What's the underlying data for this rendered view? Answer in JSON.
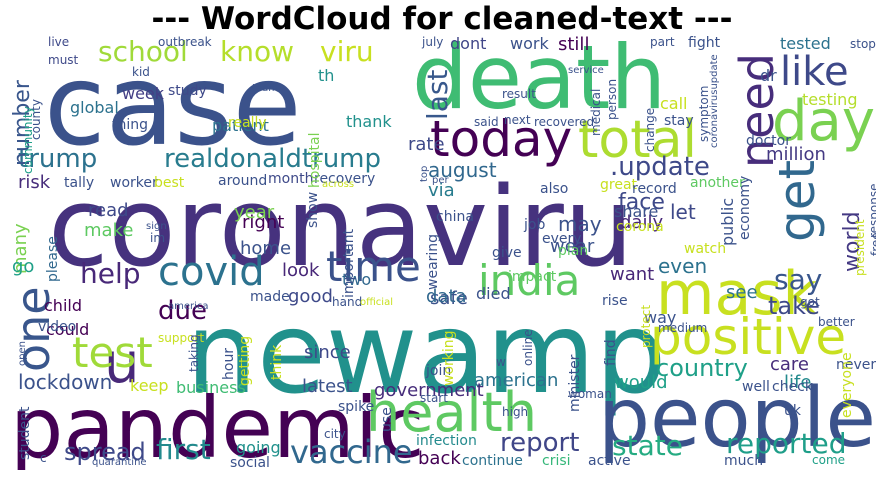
{
  "title": "--- WordCloud for cleaned-text ---",
  "words": [
    {
      "id": "case",
      "text": "case",
      "color": "#3b528b"
    },
    {
      "id": "death",
      "text": "death",
      "color": "#3fbc73"
    },
    {
      "id": "coronaviru",
      "text": "coronaviru",
      "color": "#46327e"
    },
    {
      "id": "newamp",
      "text": "newamp",
      "color": "#21918c"
    },
    {
      "id": "pandemic",
      "text": "pandemic",
      "color": "#440154"
    },
    {
      "id": "people",
      "text": "people",
      "color": "#3b528b"
    },
    {
      "id": "health",
      "text": "health",
      "color": "#5ec962"
    },
    {
      "id": "mask",
      "text": "mask",
      "color": "#c8e020"
    },
    {
      "id": "positive",
      "text": "positive",
      "color": "#c8e020"
    },
    {
      "id": "day",
      "text": "day",
      "color": "#7ad151"
    },
    {
      "id": "today",
      "text": "today",
      "color": "#440154"
    },
    {
      "id": "total",
      "text": "total",
      "color": "#addc30"
    },
    {
      "id": "get",
      "text": "get",
      "color": "#31688e"
    },
    {
      "id": "u",
      "text": "u",
      "color": "#482878"
    },
    {
      "id": "one",
      "text": "one",
      "color": "#39568c"
    },
    {
      "id": "test",
      "text": "test",
      "color": "#a0da39"
    },
    {
      "id": "covid",
      "text": "covid",
      "color": "#2c728e"
    },
    {
      "id": "time",
      "text": "time",
      "color": "#3b528b"
    },
    {
      "id": "india",
      "text": "india",
      "color": "#5ec962"
    },
    {
      "id": "vaccine",
      "text": "vaccine",
      "color": "#31688e"
    },
    {
      "id": "need",
      "text": "need",
      "color": "#472d7b"
    },
    {
      "id": "like",
      "text": "like",
      "color": "#3e4989"
    },
    {
      "id": "realdonaldtrump",
      "text": "realdonaldtrump",
      "color": "#287c8e"
    },
    {
      "id": "update",
      "text": ".update",
      "color": "#3e4989"
    },
    {
      "id": "trump",
      "text": "trump",
      "color": "#2c728e"
    },
    {
      "id": "school",
      "text": "school",
      "color": "#a0da39"
    },
    {
      "id": "know",
      "text": "know",
      "color": "#b5de2b"
    },
    {
      "id": "viru",
      "text": "viru",
      "color": "#c8e020"
    },
    {
      "id": "number",
      "text": "number",
      "color": "#39568c"
    },
    {
      "id": "last",
      "text": "last",
      "color": "#38588c"
    },
    {
      "id": "help",
      "text": "help",
      "color": "#482878"
    },
    {
      "id": "say",
      "text": "say",
      "color": "#39568c"
    },
    {
      "id": "world",
      "text": "world",
      "color": "#443983"
    },
    {
      "id": "country",
      "text": "country",
      "color": "#1fa088"
    },
    {
      "id": "state",
      "text": "state",
      "color": "#25ab82"
    },
    {
      "id": "report",
      "text": "report",
      "color": "#404688"
    },
    {
      "id": "reported",
      "text": "reported",
      "color": "#1f9e89"
    },
    {
      "id": "first",
      "text": "first",
      "color": "#238a8d"
    },
    {
      "id": "spread",
      "text": "spread",
      "color": "#3e4989"
    },
    {
      "id": "lockdown",
      "text": "lockdown",
      "color": "#3b528b"
    },
    {
      "id": "due",
      "text": "due",
      "color": "#440154"
    },
    {
      "id": "many",
      "text": "many",
      "color": "#7ad151"
    },
    {
      "id": "august",
      "text": "august",
      "color": "#31688e"
    },
    {
      "id": "even",
      "text": "even",
      "color": "#2c728e"
    },
    {
      "id": "rate",
      "text": "rate",
      "color": "#3e4989"
    },
    {
      "id": "via",
      "text": "via",
      "color": "#287c8e"
    },
    {
      "id": "million",
      "text": "million",
      "color": "#443983"
    },
    {
      "id": "tested",
      "text": "tested",
      "color": "#2c728e"
    },
    {
      "id": "testing",
      "text": "testing",
      "color": "#b5de2b"
    },
    {
      "id": "global",
      "text": "global",
      "color": "#2c728e"
    },
    {
      "id": "week",
      "text": "week",
      "color": "#433e85"
    },
    {
      "id": "risk",
      "text": "risk",
      "color": "#472d7b"
    },
    {
      "id": "go",
      "text": "go",
      "color": "#1fa088"
    },
    {
      "id": "face",
      "text": "face",
      "color": "#3e4989"
    },
    {
      "id": "may",
      "text": "may",
      "color": "#3b528b"
    },
    {
      "id": "wear",
      "text": "wear",
      "color": "#3b528b"
    },
    {
      "id": "daily",
      "text": "daily",
      "color": "#482878"
    },
    {
      "id": "let",
      "text": "let",
      "color": "#3e4989"
    },
    {
      "id": "see",
      "text": "see",
      "color": "#2c728e"
    },
    {
      "id": "want",
      "text": "want",
      "color": "#482878"
    },
    {
      "id": "take",
      "text": "take",
      "color": "#3e4989"
    },
    {
      "id": "care",
      "text": "care",
      "color": "#472d7b"
    },
    {
      "id": "life",
      "text": "life",
      "color": "#238a8d"
    },
    {
      "id": "would",
      "text": "would",
      "color": "#1fa088"
    },
    {
      "id": "american",
      "text": "american",
      "color": "#2c728e"
    },
    {
      "id": "latest",
      "text": "latest",
      "color": "#3b528b"
    },
    {
      "id": "government",
      "text": "government",
      "color": "#472d7b"
    },
    {
      "id": "business",
      "text": "business",
      "color": "#3fbc73"
    },
    {
      "id": "keep",
      "text": "keep",
      "color": "#c8e020"
    },
    {
      "id": "since",
      "text": "since",
      "color": "#3e4989"
    },
    {
      "id": "good",
      "text": "good",
      "color": "#3e4989"
    },
    {
      "id": "look",
      "text": "look",
      "color": "#482878"
    },
    {
      "id": "home",
      "text": "home",
      "color": "#3b528b"
    },
    {
      "id": "right",
      "text": "right",
      "color": "#440154"
    },
    {
      "id": "make",
      "text": "make",
      "color": "#5ec962"
    },
    {
      "id": "read",
      "text": "read",
      "color": "#3e4989"
    },
    {
      "id": "year",
      "text": "year",
      "color": "#7ad151"
    },
    {
      "id": "could",
      "text": "could",
      "color": "#440154"
    },
    {
      "id": "safe",
      "text": "safe",
      "color": "#3b528b"
    },
    {
      "id": "data",
      "text": "data",
      "color": "#31688e"
    },
    {
      "id": "died",
      "text": "died",
      "color": "#3b528b"
    },
    {
      "id": "two",
      "text": "two",
      "color": "#31688e"
    },
    {
      "id": "still",
      "text": "still",
      "color": "#440154"
    },
    {
      "id": "work",
      "text": "work",
      "color": "#3b528b"
    },
    {
      "id": "dont",
      "text": "dont",
      "color": "#404688"
    },
    {
      "id": "thank",
      "text": "thank",
      "color": "#21918c"
    },
    {
      "id": "patient",
      "text": "patient",
      "color": "#2c728e"
    },
    {
      "id": "infection",
      "text": "infection",
      "color": "#238a8d"
    },
    {
      "id": "back",
      "text": "back",
      "color": "#440154"
    },
    {
      "id": "continue",
      "text": "continue",
      "color": "#2c728e"
    },
    {
      "id": "crisi",
      "text": "crisi",
      "color": "#35b779"
    },
    {
      "id": "active",
      "text": "active",
      "color": "#3b528b"
    },
    {
      "id": "much",
      "text": "much",
      "color": "#3b528b"
    },
    {
      "id": "come",
      "text": "come",
      "color": "#1fa088"
    },
    {
      "id": "going",
      "text": "going",
      "color": "#21918c"
    },
    {
      "id": "social",
      "text": "social",
      "color": "#3b528b"
    },
    {
      "id": "student",
      "text": "student",
      "color": "#3b528b"
    },
    {
      "id": "video",
      "text": "video",
      "color": "#3b528b"
    },
    {
      "id": "child",
      "text": "child",
      "color": "#440154"
    },
    {
      "id": "please",
      "text": "please",
      "color": "#31688e"
    },
    {
      "id": "around",
      "text": "around",
      "color": "#3b528b"
    },
    {
      "id": "month",
      "text": "month",
      "color": "#3e4989"
    },
    {
      "id": "recovery",
      "text": "recovery",
      "color": "#3b528b"
    },
    {
      "id": "worker",
      "text": "worker",
      "color": "#3b528b"
    },
    {
      "id": "tally",
      "text": "tally",
      "color": "#3b528b"
    },
    {
      "id": "best",
      "text": "best",
      "color": "#c8e020"
    },
    {
      "id": "hospital",
      "text": "hospital",
      "color": "#7ad151"
    },
    {
      "id": "really",
      "text": "really",
      "color": "#c8e020"
    },
    {
      "id": "study",
      "text": "study",
      "color": "#3e4989"
    },
    {
      "id": "kid",
      "text": "kid",
      "color": "#3b528b"
    },
    {
      "id": "must",
      "text": "must",
      "color": "#3e4989"
    },
    {
      "id": "live",
      "text": "live",
      "color": "#3e4989"
    },
    {
      "id": "thing",
      "text": "thing",
      "color": "#3b528b"
    },
    {
      "id": "county",
      "text": "county",
      "color": "#3b528b"
    },
    {
      "id": "community",
      "text": "community",
      "color": "#1fa088"
    },
    {
      "id": "team",
      "text": "team",
      "color": "#3b528b"
    },
    {
      "id": "outbreak",
      "text": "outbreak",
      "color": "#3b528b"
    },
    {
      "id": "th",
      "text": "th",
      "color": "#21918c"
    },
    {
      "id": "said",
      "text": "said",
      "color": "#3b528b"
    },
    {
      "id": "next",
      "text": "next",
      "color": "#3b528b"
    },
    {
      "id": "recovered",
      "text": "recovered",
      "color": "#3b528b"
    },
    {
      "id": "result",
      "text": "result",
      "color": "#3b528b"
    },
    {
      "id": "person",
      "text": "person",
      "color": "#3b528b"
    },
    {
      "id": "medical",
      "text": "medical",
      "color": "#3b528b"
    },
    {
      "id": "july",
      "text": "july",
      "color": "#3b528b"
    },
    {
      "id": "part",
      "text": "part",
      "color": "#3b528b"
    },
    {
      "id": "fight",
      "text": "fight",
      "color": "#3b528b"
    },
    {
      "id": "call",
      "text": "call",
      "color": "#c8e020"
    },
    {
      "id": "stay",
      "text": "stay",
      "color": "#3b528b"
    },
    {
      "id": "change",
      "text": "change",
      "color": "#3b528b"
    },
    {
      "id": "symptom",
      "text": "symptom",
      "color": "#3b528b"
    },
    {
      "id": "coronavirusupdate",
      "text": "coronavirusupdate",
      "color": "#3b528b"
    },
    {
      "id": "dr",
      "text": "dr",
      "color": "#3b528b"
    },
    {
      "id": "doctor",
      "text": "doctor",
      "color": "#3b528b"
    },
    {
      "id": "stop",
      "text": "stop",
      "color": "#3b528b"
    },
    {
      "id": "service",
      "text": "service",
      "color": "#3b528b"
    },
    {
      "id": "great",
      "text": "great",
      "color": "#c8e020"
    },
    {
      "id": "also",
      "text": "also",
      "color": "#3b528b"
    },
    {
      "id": "record",
      "text": "record",
      "color": "#3b528b"
    },
    {
      "id": "another",
      "text": "another",
      "color": "#5ec962"
    },
    {
      "id": "public",
      "text": "public",
      "color": "#3b528b"
    },
    {
      "id": "economy",
      "text": "economy",
      "color": "#3b528b"
    },
    {
      "id": "response",
      "text": "response",
      "color": "#3b528b"
    },
    {
      "id": "president",
      "text": "president",
      "color": "#c8e020"
    },
    {
      "id": "free",
      "text": "free",
      "color": "#3b528b"
    },
    {
      "id": "china",
      "text": "china",
      "color": "#3b528b"
    },
    {
      "id": "share",
      "text": "share",
      "color": "#3b528b"
    },
    {
      "id": "corona",
      "text": "corona",
      "color": "#c8e020"
    },
    {
      "id": "every",
      "text": "every",
      "color": "#3b528b"
    },
    {
      "id": "job",
      "text": "job",
      "color": "#3b528b"
    },
    {
      "id": "plan",
      "text": "plan",
      "color": "#5ec962"
    },
    {
      "id": "give",
      "text": "give",
      "color": "#3b528b"
    },
    {
      "id": "watch",
      "text": "watch",
      "color": "#c8e020"
    },
    {
      "id": "got",
      "text": "got",
      "color": "#3b528b"
    },
    {
      "id": "better",
      "text": "better",
      "color": "#3b528b"
    },
    {
      "id": "impact",
      "text": "impact",
      "color": "#5ec962"
    },
    {
      "id": "rise",
      "text": "rise",
      "color": "#3b528b"
    },
    {
      "id": "way",
      "text": "way",
      "color": "#3b528b"
    },
    {
      "id": "protect",
      "text": "protect",
      "color": "#c8e020"
    },
    {
      "id": "medium",
      "text": "medium",
      "color": "#3b528b"
    },
    {
      "id": "never",
      "text": "never",
      "color": "#3b528b"
    },
    {
      "id": "everyone",
      "text": "everyone",
      "color": "#c8e020"
    },
    {
      "id": "well",
      "text": "well",
      "color": "#3b528b"
    },
    {
      "id": "check",
      "text": "check",
      "color": "#3b528b"
    },
    {
      "id": "uk",
      "text": "uk",
      "color": "#3b528b"
    },
    {
      "id": "woman",
      "text": "woman",
      "color": "#3b528b"
    },
    {
      "id": "high",
      "text": "high",
      "color": "#3b528b"
    },
    {
      "id": "start",
      "text": "start",
      "color": "#3b528b"
    },
    {
      "id": "minister",
      "text": "minister",
      "color": "#3b528b"
    },
    {
      "id": "find",
      "text": "find",
      "color": "#3b528b"
    },
    {
      "id": "online",
      "text": "online",
      "color": "#3b528b"
    },
    {
      "id": "join",
      "text": "join",
      "color": "#3b528b"
    },
    {
      "id": "working",
      "text": "working",
      "color": "#c8e020"
    },
    {
      "id": "use",
      "text": "use",
      "color": "#3b528b"
    },
    {
      "id": "city",
      "text": "city",
      "color": "#3b528b"
    },
    {
      "id": "spike",
      "text": "spike",
      "color": "#3b528b"
    },
    {
      "id": "wearing",
      "text": "wearing",
      "color": "#3b528b"
    },
    {
      "id": "important",
      "text": "important",
      "color": "#3b528b"
    },
    {
      "id": "show",
      "text": "show",
      "color": "#3b528b"
    },
    {
      "id": "think",
      "text": "think",
      "color": "#c8e020"
    },
    {
      "id": "hour",
      "text": "hour",
      "color": "#3b528b"
    },
    {
      "id": "getting",
      "text": "getting",
      "color": "#c8e020"
    },
    {
      "id": "support",
      "text": "support",
      "color": "#c8e020"
    },
    {
      "id": "taking",
      "text": "taking",
      "color": "#3b528b"
    },
    {
      "id": "made",
      "text": "made",
      "color": "#3b528b"
    },
    {
      "id": "hand",
      "text": "hand",
      "color": "#3b528b"
    },
    {
      "id": "official",
      "text": "official",
      "color": "#c8e020"
    },
    {
      "id": "america",
      "text": "america",
      "color": "#3b528b"
    },
    {
      "id": "sign",
      "text": "sign",
      "color": "#3b528b"
    },
    {
      "id": "across",
      "text": "across",
      "color": "#c8e020"
    },
    {
      "id": "per",
      "text": "per",
      "color": "#3b528b"
    },
    {
      "id": "top",
      "text": "top",
      "color": "#3b528b"
    },
    {
      "id": "im",
      "text": "im",
      "color": "#3b528b"
    },
    {
      "id": "open",
      "text": "open",
      "color": "#3b528b"
    },
    {
      "id": "quarantine",
      "text": "quarantine",
      "color": "#3b528b"
    },
    {
      "id": "c",
      "text": "c",
      "color": "#3b528b"
    },
    {
      "id": "w",
      "text": "w",
      "color": "#3b528b"
    }
  ]
}
